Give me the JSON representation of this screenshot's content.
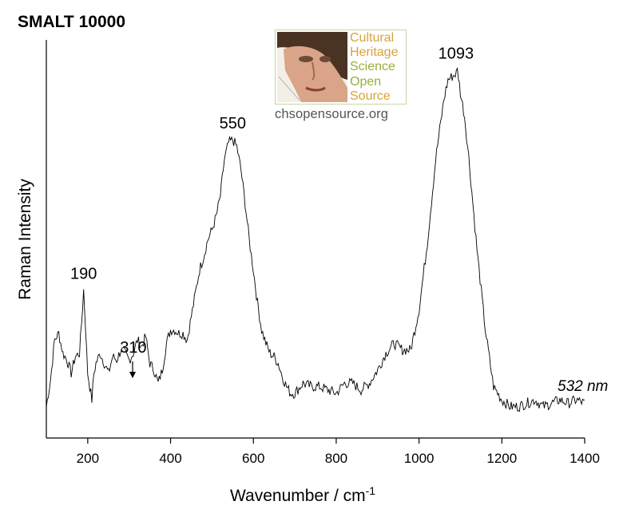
{
  "chart_data": {
    "type": "line",
    "title": "SMALT 10000",
    "xlabel": "Wavenumber / cm",
    "xlabel_sup": "-1",
    "ylabel": "Raman Intensity",
    "xlim": [
      100,
      1400
    ],
    "ylim": [
      0,
      100
    ],
    "x_ticks": [
      200,
      400,
      600,
      800,
      1000,
      1200,
      1400
    ],
    "grid": false,
    "annotation_text": "532 nm",
    "peak_labels": [
      {
        "x": 190,
        "label": "190"
      },
      {
        "x": 310,
        "label": "310"
      },
      {
        "x": 550,
        "label": "550"
      },
      {
        "x": 1093,
        "label": "1093"
      }
    ],
    "series": [
      {
        "name": "SMALT 10000",
        "x": [
          100,
          110,
          120,
          130,
          140,
          150,
          160,
          170,
          180,
          185,
          190,
          195,
          200,
          205,
          210,
          215,
          220,
          230,
          240,
          250,
          260,
          270,
          280,
          290,
          300,
          310,
          320,
          330,
          340,
          350,
          360,
          370,
          380,
          390,
          400,
          410,
          420,
          430,
          440,
          450,
          460,
          470,
          480,
          490,
          500,
          510,
          520,
          530,
          540,
          550,
          560,
          570,
          580,
          590,
          600,
          610,
          620,
          630,
          640,
          650,
          660,
          670,
          680,
          690,
          700,
          720,
          740,
          760,
          780,
          800,
          820,
          840,
          860,
          880,
          900,
          920,
          940,
          960,
          980,
          1000,
          1020,
          1040,
          1060,
          1070,
          1080,
          1090,
          1093,
          1100,
          1110,
          1120,
          1130,
          1140,
          1160,
          1180,
          1200,
          1220,
          1240,
          1260,
          1280,
          1300,
          1320,
          1340,
          1360,
          1380,
          1400
        ],
        "y": [
          2,
          10,
          22,
          24,
          18,
          16,
          12,
          17,
          18,
          27,
          37,
          25,
          12,
          8,
          4,
          12,
          15,
          18,
          15,
          12,
          17,
          16,
          19,
          18,
          16,
          18,
          22,
          20,
          23,
          15,
          13,
          9,
          13,
          21,
          25,
          25,
          24,
          24,
          22,
          29,
          36,
          43,
          47,
          52,
          55,
          59,
          65,
          76,
          81,
          82,
          80,
          73,
          63,
          52,
          43,
          33,
          25,
          21,
          18,
          17,
          15,
          11,
          8,
          6,
          6,
          9,
          8,
          8,
          7,
          6,
          9,
          9,
          7,
          9,
          13,
          18,
          21,
          19,
          19,
          31,
          51,
          76,
          94,
          100,
          101,
          102,
          103,
          96,
          89,
          77,
          63,
          49,
          25,
          8,
          4,
          2,
          2,
          3,
          4,
          2,
          3,
          4,
          3,
          4,
          3
        ]
      }
    ]
  },
  "logo": {
    "lines": [
      "Cultural",
      "Heritage",
      "Science",
      "Open",
      "Source"
    ],
    "url": "chsopensource.org"
  }
}
